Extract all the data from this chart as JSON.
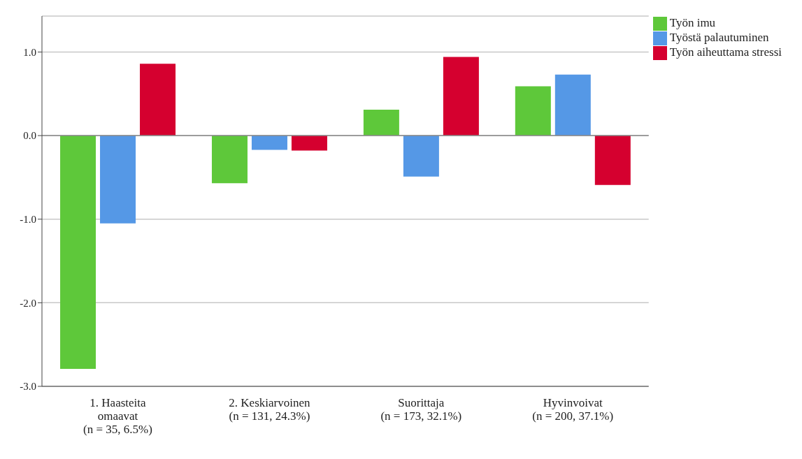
{
  "chart_data": {
    "type": "bar",
    "categories": [
      "1. Haasteita\nomaavat\n(n = 35, 6.5%)",
      "2. Keskiarvoinen\n(n = 131, 24.3%)",
      "Suorittaja\n(n = 173, 32.1%)",
      "Hyvinvoivat\n(n = 200, 37.1%)"
    ],
    "series": [
      {
        "name": "Työn imu",
        "color": "#5ec83a",
        "values": [
          -2.79,
          -0.57,
          0.31,
          0.59
        ]
      },
      {
        "name": "Työstä palautuminen",
        "color": "#5598e6",
        "values": [
          -1.05,
          -0.17,
          -0.49,
          0.73
        ]
      },
      {
        "name": "Työn aiheuttama stressi",
        "color": "#d5002f",
        "values": [
          0.86,
          -0.18,
          0.94,
          -0.59
        ]
      }
    ],
    "ylim": [
      -3,
      1.43
    ],
    "yticks": [
      {
        "value": -3,
        "label": "-3.0"
      },
      {
        "value": -2,
        "label": "-2.0"
      },
      {
        "value": -1,
        "label": "-1.0"
      },
      {
        "value": 0,
        "label": "0.0"
      },
      {
        "value": 1,
        "label": "1.0"
      }
    ],
    "grid": "y",
    "legend": "top right"
  }
}
